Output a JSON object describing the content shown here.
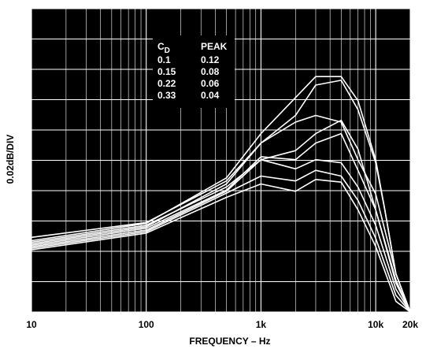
{
  "chart_data": {
    "type": "line",
    "xlabel": "FREQUENCY – Hz",
    "ylabel": "0.02dB/DIV",
    "x_scale": "log",
    "xlim": [
      10,
      20000
    ],
    "x_tick_values": [
      10,
      100,
      1000,
      10000,
      20000
    ],
    "x_tick_labels": [
      "10",
      "100",
      "1k",
      "10k",
      "20k"
    ],
    "y_divisions": 10,
    "grid": true,
    "background": "#000000",
    "line_color": "#ffffff",
    "legend": {
      "placement": "top-center",
      "header_cd": "C",
      "header_cd_sub": "D",
      "header_peak": "PEAK",
      "rows": [
        {
          "cd": "0.1",
          "peak": "0.12"
        },
        {
          "cd": "0.15",
          "peak": "0.08"
        },
        {
          "cd": "0.22",
          "peak": "0.06"
        },
        {
          "cd": "0.33",
          "peak": "0.04"
        }
      ]
    },
    "series": [
      {
        "points": [
          [
            10,
            2.35
          ],
          [
            100,
            2.92
          ],
          [
            500,
            4.42
          ],
          [
            1000,
            5.88
          ],
          [
            3000,
            7.76
          ],
          [
            5000,
            7.76
          ],
          [
            7000,
            6.97
          ],
          [
            10000,
            5.02
          ],
          [
            12000,
            3.37
          ],
          [
            15000,
            1.26
          ],
          [
            20000,
            0.0
          ]
        ]
      },
      {
        "points": [
          [
            10,
            2.46
          ],
          [
            100,
            2.95
          ],
          [
            500,
            4.32
          ],
          [
            1000,
            5.57
          ],
          [
            2000,
            6.48
          ],
          [
            3000,
            7.48
          ],
          [
            5000,
            7.64
          ],
          [
            7000,
            6.67
          ],
          [
            10000,
            4.92
          ],
          [
            12000,
            3.37
          ],
          [
            15000,
            1.26
          ],
          [
            20000,
            0.0
          ]
        ]
      },
      {
        "points": [
          [
            10,
            2.25
          ],
          [
            100,
            2.81
          ],
          [
            500,
            4.22
          ],
          [
            1000,
            5.57
          ],
          [
            2000,
            6.26
          ],
          [
            3000,
            6.48
          ],
          [
            5000,
            6.26
          ],
          [
            7000,
            5.02
          ],
          [
            10000,
            3.89
          ],
          [
            15000,
            1.26
          ],
          [
            20000,
            0.0
          ]
        ]
      },
      {
        "points": [
          [
            10,
            2.3
          ],
          [
            100,
            2.86
          ],
          [
            500,
            4.12
          ],
          [
            1000,
            5.02
          ],
          [
            2000,
            5.32
          ],
          [
            3000,
            5.88
          ],
          [
            5000,
            6.32
          ],
          [
            7000,
            5.37
          ],
          [
            10000,
            3.37
          ],
          [
            15000,
            1.05
          ],
          [
            20000,
            0.0
          ]
        ]
      },
      {
        "points": [
          [
            10,
            2.2
          ],
          [
            100,
            2.76
          ],
          [
            500,
            4.02
          ],
          [
            1000,
            5.12
          ],
          [
            2000,
            5.02
          ],
          [
            3000,
            5.57
          ],
          [
            5000,
            5.88
          ],
          [
            7000,
            4.67
          ],
          [
            10000,
            3.37
          ],
          [
            15000,
            0.95
          ],
          [
            20000,
            0.0
          ]
        ]
      },
      {
        "points": [
          [
            10,
            2.15
          ],
          [
            100,
            2.7
          ],
          [
            500,
            3.98
          ],
          [
            1000,
            5.02
          ],
          [
            2000,
            4.72
          ],
          [
            3000,
            5.02
          ],
          [
            5000,
            4.92
          ],
          [
            7000,
            4.12
          ],
          [
            10000,
            2.86
          ],
          [
            15000,
            0.75
          ],
          [
            20000,
            0.0
          ]
        ]
      },
      {
        "points": [
          [
            10,
            2.1
          ],
          [
            100,
            2.65
          ],
          [
            500,
            3.92
          ],
          [
            1000,
            4.48
          ],
          [
            2000,
            4.32
          ],
          [
            3000,
            4.67
          ],
          [
            5000,
            4.48
          ],
          [
            7000,
            3.68
          ],
          [
            10000,
            2.43
          ],
          [
            15000,
            0.55
          ],
          [
            20000,
            0.0
          ]
        ]
      },
      {
        "points": [
          [
            10,
            2.05
          ],
          [
            100,
            2.6
          ],
          [
            500,
            3.78
          ],
          [
            1000,
            4.22
          ],
          [
            2000,
            3.98
          ],
          [
            3000,
            4.37
          ],
          [
            5000,
            4.28
          ],
          [
            7000,
            3.37
          ],
          [
            10000,
            2.16
          ],
          [
            15000,
            0.35
          ],
          [
            20000,
            0.0
          ]
        ]
      }
    ]
  }
}
